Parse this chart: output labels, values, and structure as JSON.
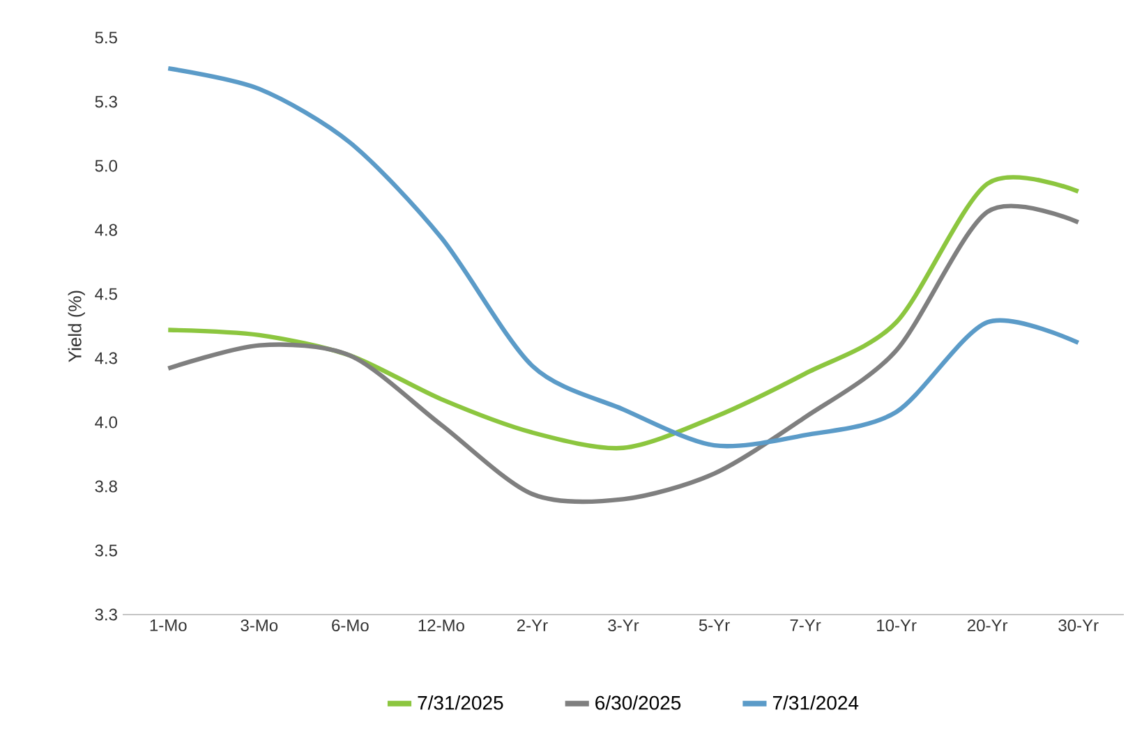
{
  "chart_data": {
    "type": "line",
    "ylabel": "Yield (%)",
    "categories": [
      "1-Mo",
      "3-Mo",
      "6-Mo",
      "12-Mo",
      "2-Yr",
      "3-Yr",
      "5-Yr",
      "7-Yr",
      "10-Yr",
      "20-Yr",
      "30-Yr"
    ],
    "ylim": [
      3.25,
      5.5
    ],
    "yticks": [
      {
        "value": 3.25,
        "label": "3.3"
      },
      {
        "value": 3.5,
        "label": "3.5"
      },
      {
        "value": 3.75,
        "label": "3.8"
      },
      {
        "value": 4.0,
        "label": "4.0"
      },
      {
        "value": 4.25,
        "label": "4.3"
      },
      {
        "value": 4.5,
        "label": "4.5"
      },
      {
        "value": 4.75,
        "label": "4.8"
      },
      {
        "value": 5.0,
        "label": "5.0"
      },
      {
        "value": 5.25,
        "label": "5.3"
      },
      {
        "value": 5.5,
        "label": "5.5"
      }
    ],
    "grid": false,
    "legend": "bottom",
    "marker": "none",
    "line_style": "solid",
    "series": [
      {
        "name": "7/31/2025",
        "color": "#8cc63f",
        "values": [
          4.36,
          4.34,
          4.26,
          4.09,
          3.96,
          3.9,
          4.02,
          4.19,
          4.39,
          4.93,
          4.9
        ]
      },
      {
        "name": "6/30/2025",
        "color": "#7f7f7f",
        "values": [
          4.21,
          4.3,
          4.26,
          3.99,
          3.72,
          3.7,
          3.8,
          4.02,
          4.28,
          4.82,
          4.78
        ]
      },
      {
        "name": "7/31/2024",
        "color": "#5b9bc8",
        "values": [
          5.38,
          5.3,
          5.09,
          4.72,
          4.22,
          4.05,
          3.91,
          3.95,
          4.04,
          4.39,
          4.31
        ]
      }
    ]
  }
}
